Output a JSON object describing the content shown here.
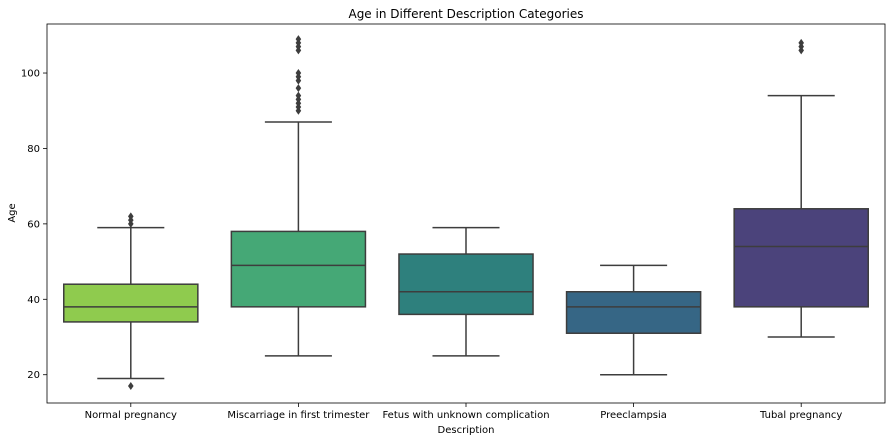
{
  "chart_data": {
    "type": "box",
    "title": "Age in Different Description Categories",
    "xlabel": "Description",
    "ylabel": "Age",
    "ylim": [
      12.5,
      113
    ],
    "yticks": [
      20,
      40,
      60,
      80,
      100
    ],
    "grid": false,
    "legend": "none",
    "categories": [
      "Normal pregnancy",
      "Miscarriage in first trimester",
      "Fetus with unknown complication",
      "Preeclampsia",
      "Tubal pregnancy"
    ],
    "boxes": [
      {
        "category": "Normal pregnancy",
        "color": "#8fcb4e",
        "whisker_low": 19,
        "q1": 34,
        "median": 38,
        "q3": 44,
        "whisker_high": 59,
        "outliers": [
          17,
          60,
          61,
          62
        ]
      },
      {
        "category": "Miscarriage in first trimester",
        "color": "#45a876",
        "whisker_low": 25,
        "q1": 38,
        "median": 49,
        "q3": 58,
        "whisker_high": 87,
        "outliers": [
          90,
          91,
          92,
          93,
          94,
          96,
          98,
          99,
          100,
          106,
          107,
          108,
          109
        ]
      },
      {
        "category": "Fetus with unknown complication",
        "color": "#2e807d",
        "whisker_low": 25,
        "q1": 36,
        "median": 42,
        "q3": 52,
        "whisker_high": 59,
        "outliers": []
      },
      {
        "category": "Preeclampsia",
        "color": "#366685",
        "whisker_low": 20,
        "q1": 31,
        "median": 38,
        "q3": 42,
        "whisker_high": 49,
        "outliers": []
      },
      {
        "category": "Tubal pregnancy",
        "color": "#4b437b",
        "whisker_low": 30,
        "q1": 38,
        "median": 54,
        "q3": 64,
        "whisker_high": 94,
        "outliers": [
          106,
          107,
          108
        ]
      }
    ]
  }
}
